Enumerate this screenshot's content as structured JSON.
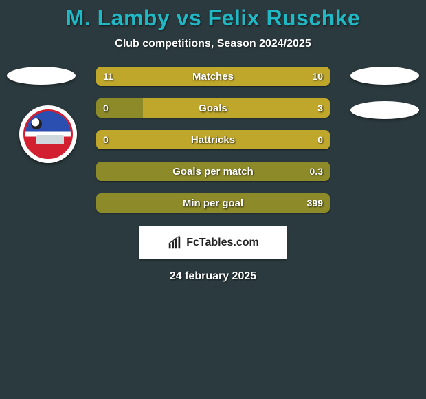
{
  "title": "M. Lamby vs Felix Ruschke",
  "subtitle": "Club competitions, Season 2024/2025",
  "date": "24 february 2025",
  "watermark": "FcTables.com",
  "colors": {
    "background": "#2b3a3e",
    "title": "#20b8c4",
    "text": "#ffffff",
    "bar_bg_default": "#8d8a2a",
    "bar_fill_yellow": "#bfa72b",
    "ellipse": "#ffffff"
  },
  "stats": [
    {
      "label": "Matches",
      "left_value": "11",
      "right_value": "10",
      "left_pct": 52,
      "right_pct": 48,
      "bg_color": "#8d8a2a",
      "left_color": "#bfa72b",
      "right_color": "#bfa72b"
    },
    {
      "label": "Goals",
      "left_value": "0",
      "right_value": "3",
      "left_pct": 0,
      "right_pct": 80,
      "bg_color": "#8d8a2a",
      "left_color": "#bfa72b",
      "right_color": "#bfa72b"
    },
    {
      "label": "Hattricks",
      "left_value": "0",
      "right_value": "0",
      "left_pct": 0,
      "right_pct": 0,
      "bg_color": "#bfa72b",
      "left_color": "#bfa72b",
      "right_color": "#bfa72b"
    },
    {
      "label": "Goals per match",
      "left_value": "",
      "right_value": "0.3",
      "left_pct": 0,
      "right_pct": 0,
      "bg_color": "#8d8a2a",
      "left_color": "#bfa72b",
      "right_color": "#bfa72b"
    },
    {
      "label": "Min per goal",
      "left_value": "",
      "right_value": "399",
      "left_pct": 0,
      "right_pct": 0,
      "bg_color": "#8d8a2a",
      "left_color": "#bfa72b",
      "right_color": "#bfa72b"
    }
  ]
}
